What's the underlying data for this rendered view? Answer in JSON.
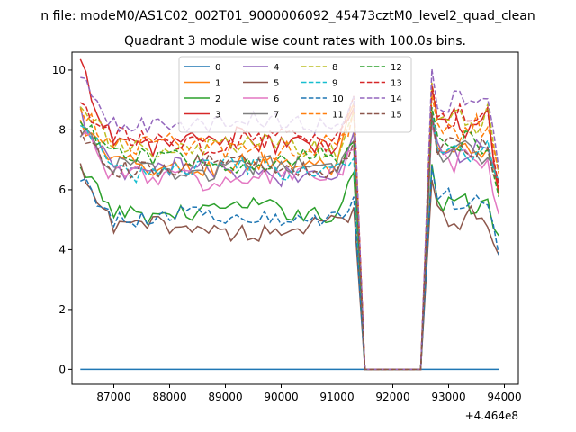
{
  "figure": {
    "suptitle": "n file: modeM0/AS1C02_002T01_9000006092_45473cztM0_level2_quad_clean",
    "title": "Quadrant 3 module wise count rates with 100.0s bins.",
    "x_offset_label": "+4.464e8"
  },
  "chart_data": {
    "type": "line",
    "title": "Quadrant 3 module wise count rates with 100.0s bins.",
    "xlabel": "",
    "ylabel": "",
    "xlim": [
      86250,
      94250
    ],
    "ylim": [
      -0.5,
      10.6
    ],
    "x_ticks": [
      87000,
      88000,
      89000,
      90000,
      91000,
      92000,
      93000,
      94000
    ],
    "x_tick_labels": [
      "87000",
      "88000",
      "89000",
      "90000",
      "91000",
      "92000",
      "93000",
      "94000"
    ],
    "y_ticks": [
      0,
      2,
      4,
      6,
      8,
      10
    ],
    "y_tick_labels": [
      "0",
      "2",
      "4",
      "6",
      "8",
      "10"
    ],
    "grid": false,
    "legend_position": "top-center",
    "legend_columns": 4,
    "x_segments": {
      "seg1": {
        "start": 86400,
        "end": 91300,
        "step": 100
      },
      "gap": {
        "start": 91500,
        "end": 92500,
        "value": 0
      },
      "seg2": {
        "start": 92700,
        "end": 93900,
        "step": 100
      }
    },
    "series": [
      {
        "name": "0",
        "color": "#1f77b4",
        "dash": "solid",
        "segment_levels": [
          0,
          0
        ],
        "constant": 0
      },
      {
        "name": "1",
        "color": "#ff7f0e",
        "dash": "solid",
        "segment_levels": [
          6.8,
          7.2
        ],
        "start": 8.2,
        "end1": 8.8,
        "end2": 6.0,
        "noise": 0.35
      },
      {
        "name": "2",
        "color": "#2ca02c",
        "dash": "solid",
        "segment_levels": [
          5.3,
          5.6
        ],
        "start": 6.6,
        "end1": 6.5,
        "end2": 4.3,
        "noise": 0.3
      },
      {
        "name": "3",
        "color": "#d62728",
        "dash": "solid",
        "segment_levels": [
          7.6,
          8.2
        ],
        "start": 10.1,
        "end1": 8.6,
        "end2": 6.0,
        "noise": 0.4
      },
      {
        "name": "4",
        "color": "#9467bd",
        "dash": "solid",
        "segment_levels": [
          6.6,
          7.3
        ],
        "start": 8.5,
        "end1": 7.8,
        "end2": 6.0,
        "noise": 0.35
      },
      {
        "name": "5",
        "color": "#8c564b",
        "dash": "solid",
        "segment_levels": [
          4.7,
          5.1
        ],
        "start": 6.6,
        "end1": 5.3,
        "end2": 3.9,
        "noise": 0.3
      },
      {
        "name": "6",
        "color": "#e377c2",
        "dash": "solid",
        "segment_levels": [
          6.4,
          7.0
        ],
        "start": 8.1,
        "end1": 7.2,
        "end2": 4.9,
        "noise": 0.35
      },
      {
        "name": "7",
        "color": "#7f7f7f",
        "dash": "solid",
        "segment_levels": [
          6.7,
          7.2
        ],
        "start": 8.0,
        "end1": 7.5,
        "end2": 6.3,
        "noise": 0.3
      },
      {
        "name": "8",
        "color": "#bcbd22",
        "dash": "dashed",
        "segment_levels": [
          7.4,
          8.4
        ],
        "start": 9.0,
        "end1": 8.4,
        "end2": 6.2,
        "noise": 0.35
      },
      {
        "name": "9",
        "color": "#17becf",
        "dash": "dashed",
        "segment_levels": [
          6.7,
          7.4
        ],
        "start": 8.3,
        "end1": 6.9,
        "end2": 6.3,
        "noise": 0.3
      },
      {
        "name": "10",
        "color": "#1f77b4",
        "dash": "dashed",
        "segment_levels": [
          5.1,
          5.6
        ],
        "start": 6.4,
        "end1": 5.6,
        "end2": 4.1,
        "noise": 0.3
      },
      {
        "name": "11",
        "color": "#ff7f0e",
        "dash": "dashed",
        "segment_levels": [
          7.4,
          8.0
        ],
        "start": 8.8,
        "end1": 8.5,
        "end2": 6.5,
        "noise": 0.35
      },
      {
        "name": "12",
        "color": "#2ca02c",
        "dash": "dashed",
        "segment_levels": [
          7.0,
          7.6
        ],
        "start": 8.3,
        "end1": 7.4,
        "end2": 6.0,
        "noise": 0.3
      },
      {
        "name": "13",
        "color": "#d62728",
        "dash": "dashed",
        "segment_levels": [
          7.6,
          8.4
        ],
        "start": 8.9,
        "end1": 8.9,
        "end2": 6.0,
        "noise": 0.35
      },
      {
        "name": "14",
        "color": "#9467bd",
        "dash": "dashed",
        "segment_levels": [
          8.2,
          8.9
        ],
        "start": 9.7,
        "end1": 8.9,
        "end2": 6.9,
        "noise": 0.3
      },
      {
        "name": "15",
        "color": "#8c564b",
        "dash": "dashed",
        "segment_levels": [
          6.8,
          7.4
        ],
        "start": 7.9,
        "end1": 7.4,
        "end2": 6.2,
        "noise": 0.3
      }
    ]
  }
}
